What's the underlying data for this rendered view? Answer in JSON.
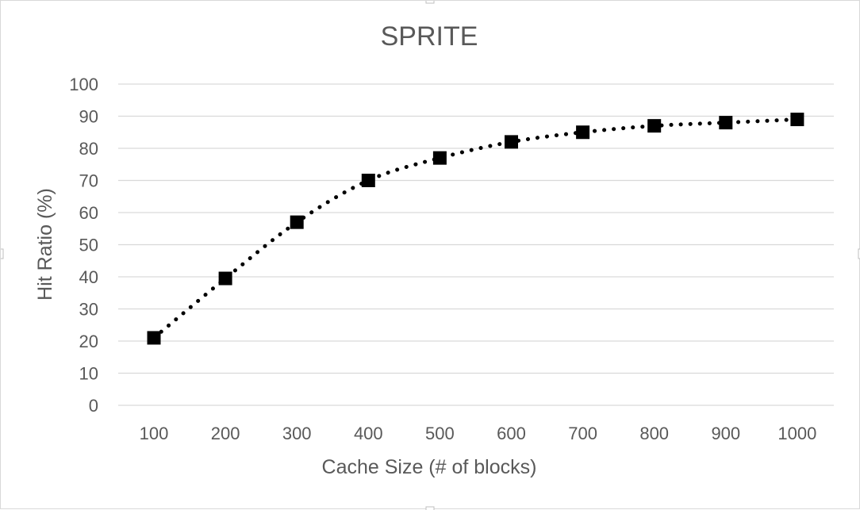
{
  "chart_data": {
    "type": "line",
    "title": "SPRITE",
    "xlabel": "Cache Size (# of blocks)",
    "ylabel": "Hit Ratio (%)",
    "categories": [
      "100",
      "200",
      "300",
      "400",
      "500",
      "600",
      "700",
      "800",
      "900",
      "1000"
    ],
    "y_ticks": [
      "0",
      "10",
      "20",
      "30",
      "40",
      "50",
      "60",
      "70",
      "80",
      "90",
      "100"
    ],
    "ylim": [
      0,
      100
    ],
    "grid": true,
    "legend": "none",
    "series": [
      {
        "values": [
          21,
          39.5,
          57,
          70,
          77,
          82,
          85,
          87,
          88,
          89
        ],
        "color": "#000000",
        "line_style": "dotted",
        "marker": "square"
      }
    ]
  }
}
